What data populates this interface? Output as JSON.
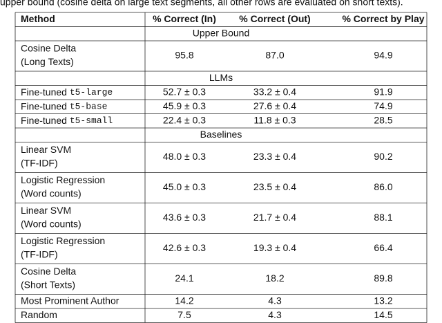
{
  "caption": "upper bound (cosine delta on large text segments, all other rows are evaluated on short texts).",
  "table": {
    "header": [
      "Method",
      "% Correct (In)",
      "% Correct (Out)",
      "% Correct by Play"
    ],
    "sections": [
      {
        "title": "Upper Bound",
        "rows": [
          {
            "method": [
              "Cosine Delta",
              "(Long Texts)"
            ],
            "cells": [
              "95.8",
              "87.0",
              "94.9"
            ]
          }
        ]
      },
      {
        "title": "LLMs",
        "rows": [
          {
            "method": [
              "Fine-tuned"
            ],
            "code": "t5-large",
            "cells": [
              "52.7 ± 0.3",
              "33.2 ± 0.4",
              "91.9"
            ]
          },
          {
            "method": [
              "Fine-tuned"
            ],
            "code": "t5-base",
            "cells": [
              "45.9 ± 0.3",
              "27.6 ± 0.4",
              "74.9"
            ]
          },
          {
            "method": [
              "Fine-tuned"
            ],
            "code": "t5-small",
            "cells": [
              "22.4 ± 0.3",
              "11.8 ± 0.3",
              "28.5"
            ]
          }
        ]
      },
      {
        "title": "Baselines",
        "rows": [
          {
            "method": [
              "Linear SVM",
              "(TF-IDF)"
            ],
            "cells": [
              "48.0 ± 0.3",
              "23.3 ± 0.4",
              "90.2"
            ]
          },
          {
            "method": [
              "Logistic Regression",
              "(Word counts)"
            ],
            "cells": [
              "45.0 ± 0.3",
              "23.5 ± 0.4",
              "86.0"
            ]
          },
          {
            "method": [
              "Linear SVM",
              "(Word counts)"
            ],
            "cells": [
              "43.6 ± 0.3",
              "21.7 ± 0.4",
              "88.1"
            ]
          },
          {
            "method": [
              "Logistic Regression",
              "(TF-IDF)"
            ],
            "cells": [
              "42.6 ± 0.3",
              "19.3 ± 0.4",
              "66.4"
            ]
          },
          {
            "method": [
              "Cosine Delta",
              "(Short Texts)"
            ],
            "cells": [
              "24.1",
              "18.2",
              "89.8"
            ]
          },
          {
            "method": [
              "Most Prominent Author"
            ],
            "cells": [
              "14.2",
              "4.3",
              "13.2"
            ]
          },
          {
            "method": [
              "Random"
            ],
            "cells": [
              "7.5",
              "4.3",
              "14.5"
            ]
          }
        ]
      }
    ]
  }
}
